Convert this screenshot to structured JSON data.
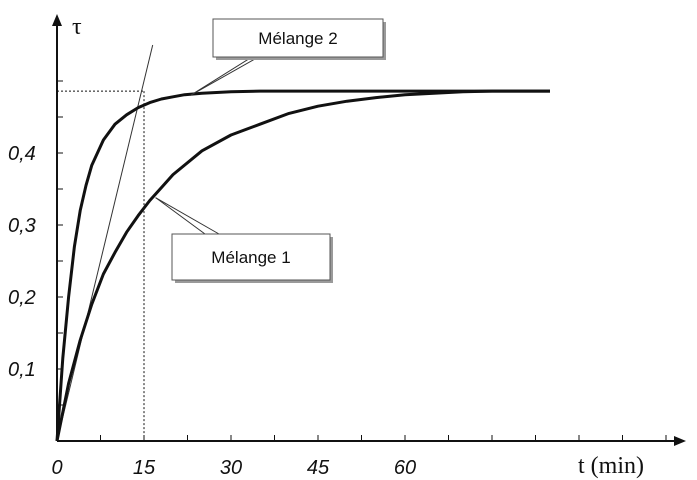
{
  "chart_data": {
    "type": "line",
    "title": "",
    "xlabel": "t (min)",
    "ylabel": "τ",
    "xlim": [
      0,
      70
    ],
    "ylim": [
      0,
      0.5
    ],
    "x_ticks": [
      {
        "value": 0,
        "label": "0"
      },
      {
        "value": 15,
        "label": "15"
      },
      {
        "value": 30,
        "label": "30"
      },
      {
        "value": 45,
        "label": "45"
      },
      {
        "value": 60,
        "label": "60"
      }
    ],
    "y_ticks": [
      {
        "value": 0.1,
        "label": "0,1"
      },
      {
        "value": 0.2,
        "label": "0,2"
      },
      {
        "value": 0.3,
        "label": "0,3"
      },
      {
        "value": 0.4,
        "label": "0,4"
      }
    ],
    "series": [
      {
        "name": "Mélange 2",
        "x": [
          0,
          1,
          2,
          3,
          4,
          5,
          6,
          8,
          10,
          12,
          14,
          16,
          18,
          20,
          22,
          25,
          30,
          35,
          40,
          50,
          60,
          70,
          85
        ],
        "y": [
          0.0,
          0.115,
          0.2,
          0.27,
          0.32,
          0.355,
          0.383,
          0.418,
          0.44,
          0.453,
          0.463,
          0.47,
          0.475,
          0.478,
          0.481,
          0.483,
          0.485,
          0.486,
          0.486,
          0.486,
          0.486,
          0.486,
          0.486
        ]
      },
      {
        "name": "Mélange 1",
        "x": [
          0,
          2,
          4,
          6,
          8,
          10,
          12,
          14,
          16,
          18,
          20,
          25,
          30,
          35,
          40,
          45,
          50,
          55,
          60,
          65,
          70,
          75,
          85
        ],
        "y": [
          0.0,
          0.08,
          0.14,
          0.19,
          0.232,
          0.262,
          0.29,
          0.313,
          0.334,
          0.352,
          0.37,
          0.403,
          0.425,
          0.44,
          0.455,
          0.465,
          0.472,
          0.477,
          0.481,
          0.483,
          0.485,
          0.486,
          0.486
        ]
      }
    ],
    "tangent": {
      "x": [
        0,
        16.5
      ],
      "y": [
        0,
        0.55
      ]
    },
    "reference": {
      "plateau_y": 0.486,
      "at_x": 15
    },
    "annotations": [
      {
        "text": "Mélange 2",
        "points_to_series": "Mélange 2"
      },
      {
        "text": "Mélange 1",
        "points_to_series": "Mélange 1"
      }
    ],
    "grid": false,
    "legend": "none"
  }
}
